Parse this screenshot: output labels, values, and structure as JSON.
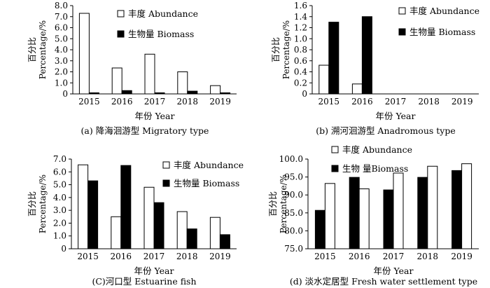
{
  "chart_data": [
    {
      "type": "bar",
      "caption": "(a)  降海洄游型 Migratory type",
      "categories": [
        "2015",
        "2016",
        "2017",
        "2018",
        "2019"
      ],
      "series": [
        {
          "name": "丰度 Abundance",
          "color": "#ffffff",
          "values": [
            7.3,
            2.35,
            3.6,
            2.0,
            0.75
          ]
        },
        {
          "name": "生物量 Biomass",
          "color": "#000000",
          "values": [
            0.1,
            0.3,
            0.1,
            0.25,
            0.1
          ]
        }
      ],
      "xlabel": "年份 Year",
      "ylabel": [
        "百分比",
        "Percentage/%"
      ],
      "ylim": [
        0,
        8
      ],
      "yticks": [
        "0",
        "1.0",
        "2.0",
        "3.0",
        "4.0",
        "5.0",
        "6.0",
        "7.0",
        "8.0"
      ],
      "legend": "top-right"
    },
    {
      "type": "bar",
      "caption": "(b)  溯河洄游型 Anadromous type",
      "categories": [
        "2015",
        "2016",
        "2017",
        "2018",
        "2019"
      ],
      "series": [
        {
          "name": "丰度 Abundance",
          "color": "#ffffff",
          "values": [
            0.52,
            0.18,
            null,
            null,
            null
          ]
        },
        {
          "name": "生物量 Biomass",
          "color": "#000000",
          "values": [
            1.3,
            1.4,
            null,
            null,
            null
          ]
        }
      ],
      "xlabel": "年份 Year",
      "ylabel": [
        "百分比",
        "Percentage/%"
      ],
      "ylim": [
        0,
        1.6
      ],
      "yticks": [
        "0",
        "0.2",
        "0.4",
        "0.6",
        "0.8",
        "1.0",
        "1.2",
        "1.4",
        "1.6"
      ],
      "legend": "top-right"
    },
    {
      "type": "bar",
      "caption": "(C)河口型  Estuarine fish",
      "categories": [
        "2015",
        "2016",
        "2017",
        "2018",
        "2019"
      ],
      "series": [
        {
          "name": "丰度 Abundance",
          "color": "#ffffff",
          "values": [
            6.55,
            2.5,
            4.8,
            2.9,
            2.45
          ]
        },
        {
          "name": "生物量 Biomass",
          "color": "#000000",
          "values": [
            5.3,
            6.5,
            3.6,
            1.55,
            1.1
          ]
        }
      ],
      "xlabel": "年份 Year",
      "ylabel": [
        "百分比",
        "Percentage/%"
      ],
      "ylim": [
        0,
        7
      ],
      "yticks": [
        "0",
        "1.0",
        "2.0",
        "3.0",
        "4.0",
        "5.0",
        "6.0",
        "7.0"
      ],
      "legend": "top-right"
    },
    {
      "type": "bar",
      "caption": "(d)  淡水定居型 Fresh water settlement type",
      "categories": [
        "2015",
        "2016",
        "2017",
        "2018",
        "2019"
      ],
      "series": [
        {
          "name": "丰度 Abundance",
          "color": "#ffffff",
          "values": [
            93.2,
            91.7,
            96.1,
            98.0,
            98.7
          ]
        },
        {
          "name": "生物 量Biomass",
          "color": "#000000",
          "values": [
            85.7,
            94.9,
            91.4,
            94.9,
            96.8
          ]
        }
      ],
      "bar_order": [
        "生物 量Biomass",
        "丰度 Abundance"
      ],
      "xlabel": "年份 Year",
      "ylabel": [
        "百分比",
        "Percentage/%"
      ],
      "ylim": [
        75,
        100
      ],
      "yticks": [
        "75.0",
        "80.0",
        "85.0",
        "90.0",
        "95.0",
        "100.0"
      ],
      "legend": "top-left"
    }
  ]
}
